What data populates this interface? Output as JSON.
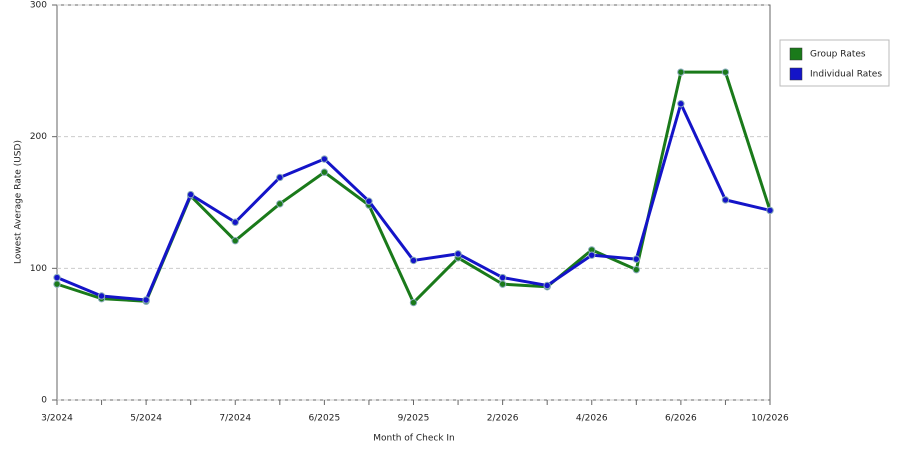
{
  "chart_data": {
    "type": "line",
    "categories": [
      "3/2024",
      null,
      "5/2024",
      null,
      "7/2024",
      null,
      "6/2025",
      null,
      "9/2025",
      null,
      "2/2026",
      null,
      "4/2026",
      null,
      "6/2026",
      null,
      "10/2026"
    ],
    "series": [
      {
        "name": "Group Rates",
        "color": "#1a7a1a",
        "values": [
          88,
          77,
          75,
          155,
          121,
          149,
          173,
          148,
          74,
          108,
          88,
          86,
          114,
          99,
          249,
          249,
          144
        ]
      },
      {
        "name": "Individual Rates",
        "color": "#1414c8",
        "values": [
          93,
          79,
          76,
          156,
          135,
          169,
          183,
          151,
          106,
          111,
          93,
          87,
          110,
          107,
          225,
          152,
          144
        ]
      }
    ],
    "ylim": [
      0,
      300
    ],
    "yticks": [
      0,
      100,
      200,
      300
    ],
    "grid": true,
    "y_label": "Lowest Average Rate (USD)",
    "x_label": "Month of Check In",
    "legend": "right"
  }
}
